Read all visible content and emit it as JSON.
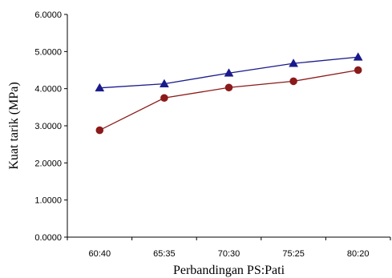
{
  "chart_data": {
    "type": "line",
    "title": "",
    "xlabel": "Perbandingan PS:Pati",
    "ylabel": "Kuat tarik (MPa)",
    "categories": [
      "60:40",
      "65:35",
      "70:30",
      "75:25",
      "80:20"
    ],
    "ylim": [
      0,
      6
    ],
    "yticks": [
      "0.0000",
      "1.0000",
      "2.0000",
      "3.0000",
      "4.0000",
      "5.0000",
      "6.0000"
    ],
    "grid": false,
    "legend": "none",
    "series": [
      {
        "marker": "triangle",
        "color": "#1a1a8c",
        "values": [
          4.02,
          4.13,
          4.42,
          4.68,
          4.85
        ]
      },
      {
        "marker": "circle",
        "color": "#8b1a1a",
        "values": [
          2.88,
          3.75,
          4.03,
          4.2,
          4.5
        ]
      }
    ]
  }
}
